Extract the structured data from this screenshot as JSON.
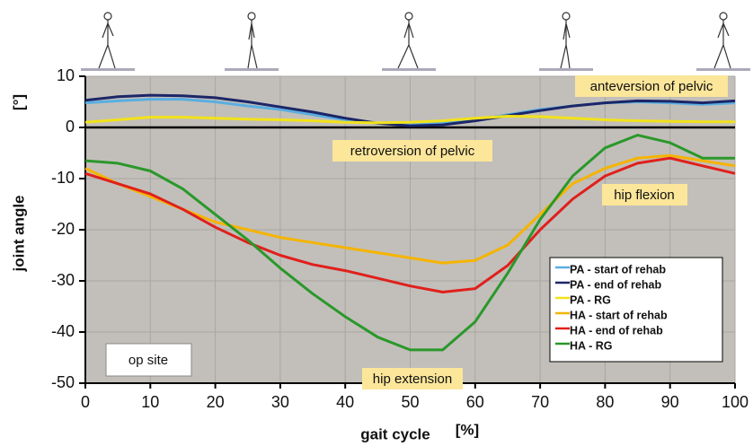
{
  "chart_data": {
    "type": "line",
    "y_label_top": "[°]",
    "y_label": "joint angle",
    "x_label": "gait cycle",
    "x_unit": "[%]",
    "annotations": [
      "anteversion of pelvic",
      "retroversion of pelvic",
      "hip flexion",
      "hip extension",
      "op site"
    ],
    "x": [
      0,
      5,
      10,
      15,
      20,
      25,
      30,
      35,
      40,
      45,
      50,
      55,
      60,
      65,
      70,
      75,
      80,
      85,
      90,
      95,
      100
    ],
    "series": [
      {
        "name": "PA - start of rehab",
        "color": "#5aaee0",
        "values": [
          4.8,
          5.2,
          5.5,
          5.5,
          5,
          4.2,
          3.5,
          2.5,
          1.5,
          0.8,
          0.5,
          0.8,
          1.5,
          2.5,
          3.5,
          4.2,
          4.8,
          5,
          4.8,
          4.5,
          4.8
        ]
      },
      {
        "name": "PA - end of rehab",
        "color": "#1c2668",
        "values": [
          5.3,
          6,
          6.3,
          6.2,
          5.8,
          5,
          4,
          3,
          1.8,
          0.8,
          0.3,
          0.5,
          1.3,
          2.3,
          3.3,
          4.2,
          4.8,
          5.2,
          5.1,
          4.8,
          5.2
        ]
      },
      {
        "name": "PA - RG",
        "color": "#f2e21a",
        "values": [
          1,
          1.5,
          2,
          2,
          1.8,
          1.6,
          1.5,
          1.3,
          1,
          0.9,
          1,
          1.3,
          1.8,
          2.2,
          2.1,
          1.8,
          1.5,
          1.3,
          1.2,
          1.1,
          1.1
        ]
      },
      {
        "name": "HA - start of rehab",
        "color": "#f5b400",
        "values": [
          -8,
          -11,
          -13.5,
          -16,
          -18.5,
          -20,
          -21.5,
          -22.5,
          -23.5,
          -24.5,
          -25.5,
          -26.5,
          -26,
          -23,
          -17,
          -11,
          -8,
          -6,
          -5.5,
          -6.5,
          -7.5
        ]
      },
      {
        "name": "HA - end of rehab",
        "color": "#e0201c",
        "values": [
          -9,
          -11,
          -13,
          -16,
          -19.5,
          -22.5,
          -25,
          -26.8,
          -28,
          -29.5,
          -31,
          -32.2,
          -31.5,
          -27,
          -20,
          -14,
          -9.5,
          -7,
          -6,
          -7.5,
          -9
        ]
      },
      {
        "name": "HA - RG",
        "color": "#2a982a",
        "values": [
          -6.5,
          -7,
          -8.5,
          -12,
          -17,
          -22,
          -27.5,
          -32.5,
          -37,
          -41,
          -43.5,
          -43.5,
          -38,
          -28.5,
          -18,
          -9.5,
          -4,
          -1.5,
          -3,
          -6,
          -6
        ]
      }
    ],
    "xlim": [
      0,
      100
    ],
    "xticks": [
      0,
      10,
      20,
      30,
      40,
      50,
      60,
      70,
      80,
      90,
      100
    ],
    "ylim": [
      -50,
      10
    ],
    "yticks": [
      10,
      0,
      -10,
      -20,
      -30,
      -40,
      -50
    ],
    "grid": true,
    "legend": "lower right"
  }
}
